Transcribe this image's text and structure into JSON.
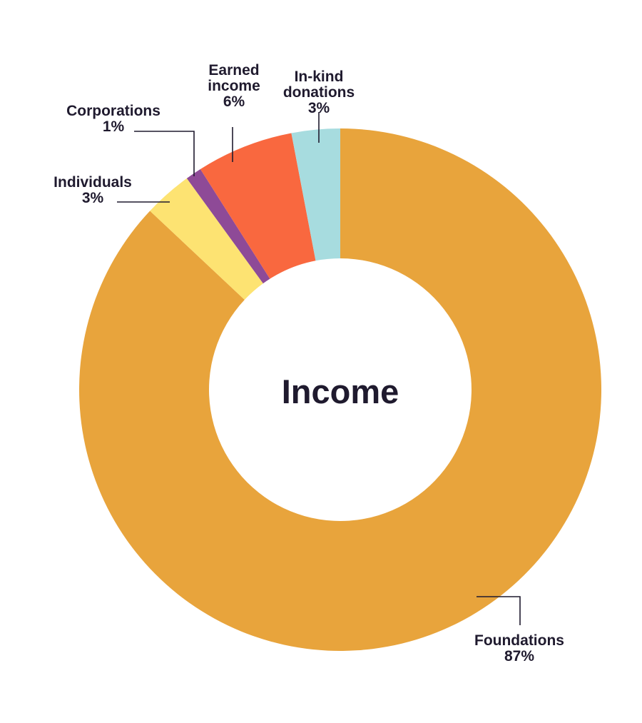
{
  "chart_data": {
    "type": "pie",
    "title": "Income",
    "subtype": "donut",
    "start": "12 o'clock",
    "direction": "clockwise",
    "slices": [
      {
        "label": "Foundations",
        "label_lines": [
          "Foundations"
        ],
        "percent_text": "87%",
        "value": 87,
        "color": "#E8A43C"
      },
      {
        "label": "Individuals",
        "label_lines": [
          "Individuals"
        ],
        "percent_text": "3%",
        "value": 3,
        "color": "#FDE372"
      },
      {
        "label": "Corporations",
        "label_lines": [
          "Corporations"
        ],
        "percent_text": "1%",
        "value": 1,
        "color": "#8E4A97"
      },
      {
        "label": "Earned income",
        "label_lines": [
          "Earned",
          "income"
        ],
        "percent_text": "6%",
        "value": 6,
        "color": "#F9683F"
      },
      {
        "label": "In-kind donations",
        "label_lines": [
          "In-kind",
          "donations"
        ],
        "percent_text": "3%",
        "value": 3,
        "color": "#A7DCDF"
      }
    ],
    "legend": "none (direct labels with leader lines)"
  }
}
